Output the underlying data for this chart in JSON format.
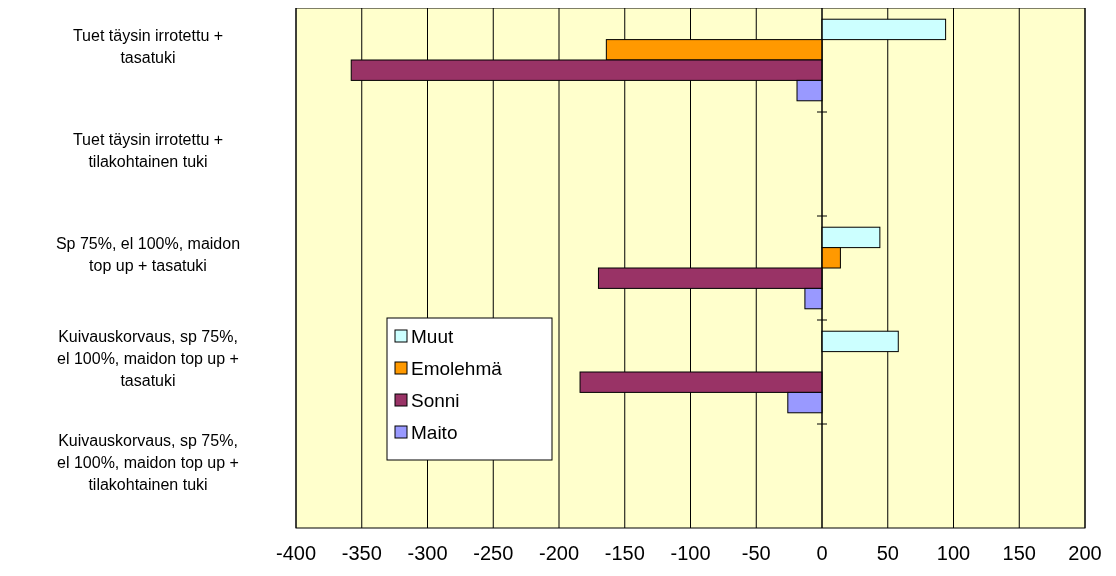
{
  "chart_data": {
    "type": "bar",
    "orientation": "horizontal",
    "categories": [
      "Tuet täysin irrotettu + tasatuki",
      "Tuet täysin irrotettu + tilakohtainen tuki",
      "Sp 75%, el 100%, maidon top up + tasatuki",
      "Kuivauskorvaus, sp 75%, el 100%, maidon top up + tasatuki",
      "Kuivauskorvaus, sp 75%, el 100%, maidon top up + tilakohtainen tuki"
    ],
    "series": [
      {
        "name": "Muut",
        "color": "#ccffff",
        "values": [
          94,
          null,
          44,
          58,
          null
        ]
      },
      {
        "name": "Emolehmä",
        "color": "#ff9900",
        "values": [
          -164,
          null,
          14,
          null,
          null
        ]
      },
      {
        "name": "Sonni",
        "color": "#993366",
        "values": [
          -358,
          null,
          -170,
          -184,
          null
        ]
      },
      {
        "name": "Maito",
        "color": "#9999ff",
        "values": [
          -19,
          null,
          -13,
          -26,
          null
        ]
      }
    ],
    "xlim": [
      -400,
      200
    ],
    "xticks": [
      -400,
      -350,
      -300,
      -250,
      -200,
      -150,
      -100,
      -50,
      0,
      50,
      100,
      150,
      200
    ],
    "grid": "x",
    "legend": "bottom left"
  }
}
